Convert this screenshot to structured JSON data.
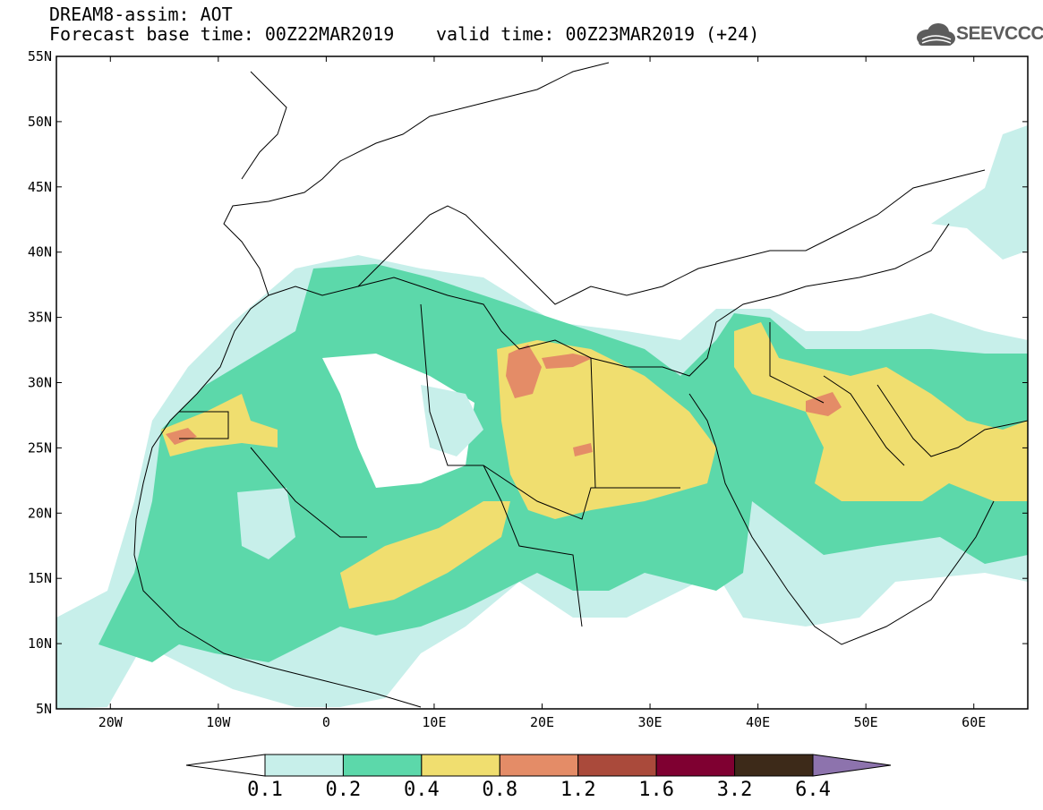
{
  "header": {
    "title": "DREAM8-assim: AOT",
    "base_time": "Forecast base time: 00Z22MAR2019",
    "valid_time": "valid time: 00Z23MAR2019 (+24)"
  },
  "logo": {
    "text": "SEEVCCC",
    "icon": "cloud-icon"
  },
  "map": {
    "lat_ticks": [
      "55N",
      "50N",
      "45N",
      "40N",
      "35N",
      "30N",
      "25N",
      "20N",
      "15N",
      "10N",
      "5N"
    ],
    "lon_ticks": [
      "20W",
      "10W",
      "0",
      "10E",
      "20E",
      "30E",
      "40E",
      "50E",
      "60E"
    ],
    "lat_range": [
      5,
      55
    ],
    "lon_range": [
      -25,
      65
    ]
  },
  "colorbar": {
    "labels": [
      "0.1",
      "0.2",
      "0.4",
      "0.8",
      "1.2",
      "1.6",
      "3.2",
      "6.4"
    ],
    "colors": [
      "#ffffff",
      "#c7efea",
      "#5cd8aa",
      "#f0de6f",
      "#e48c67",
      "#aa4a3b",
      "#7f0031",
      "#3d2a19",
      "#8d73ad"
    ]
  }
}
